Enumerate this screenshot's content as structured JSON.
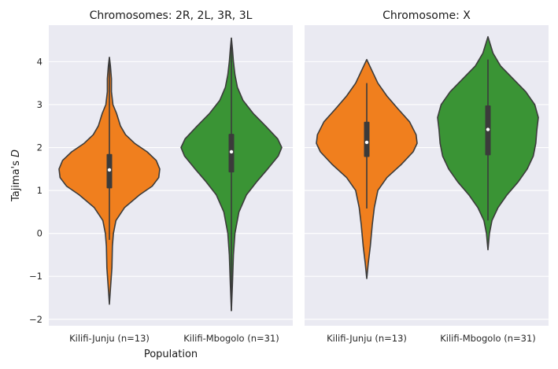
{
  "chart_data": {
    "type": "violin",
    "ylabel_prefix": "Tajima's ",
    "ylabel_italic": "D",
    "xlabel": "Population",
    "ylim": [
      -2.15,
      4.85
    ],
    "yticks": [
      {
        "value": -2,
        "label": "−2"
      },
      {
        "value": -1,
        "label": "−1"
      },
      {
        "value": 0,
        "label": "0"
      },
      {
        "value": 1,
        "label": "1"
      },
      {
        "value": 2,
        "label": "2"
      },
      {
        "value": 3,
        "label": "3"
      },
      {
        "value": 4,
        "label": "4"
      }
    ],
    "grid": true,
    "colors": {
      "Kilifi-Junju (n=13)": "#f07f1e",
      "Kilifi-Mbogolo (n=31)": "#3a9435",
      "background": "#eaeaf2",
      "line": "#3b3b3b"
    },
    "panels": [
      {
        "title": "Chromosomes: 2R, 2L, 3R, 3L",
        "categories": [
          "Kilifi-Junju (n=13)",
          "Kilifi-Mbogolo (n=31)"
        ],
        "violins": [
          {
            "category": "Kilifi-Junju (n=13)",
            "min": -1.65,
            "q1": 1.05,
            "median": 1.48,
            "q3": 1.85,
            "max": 4.1,
            "whisker_low": -0.15,
            "whisker_high": 4.1,
            "profile": [
              [
                -1.65,
                0.0
              ],
              [
                -1.3,
                0.02
              ],
              [
                -0.8,
                0.05
              ],
              [
                -0.3,
                0.06
              ],
              [
                0.0,
                0.08
              ],
              [
                0.3,
                0.13
              ],
              [
                0.6,
                0.3
              ],
              [
                0.9,
                0.6
              ],
              [
                1.1,
                0.85
              ],
              [
                1.3,
                0.98
              ],
              [
                1.5,
                1.0
              ],
              [
                1.7,
                0.93
              ],
              [
                1.9,
                0.75
              ],
              [
                2.1,
                0.5
              ],
              [
                2.3,
                0.32
              ],
              [
                2.5,
                0.22
              ],
              [
                2.8,
                0.14
              ],
              [
                3.0,
                0.07
              ],
              [
                3.3,
                0.04
              ],
              [
                3.6,
                0.04
              ],
              [
                3.9,
                0.02
              ],
              [
                4.1,
                0.0
              ]
            ]
          },
          {
            "category": "Kilifi-Mbogolo (n=31)",
            "min": -1.8,
            "q1": 1.42,
            "median": 1.9,
            "q3": 2.32,
            "max": 4.55,
            "whisker_low": -1.8,
            "whisker_high": 4.55,
            "profile": [
              [
                -1.8,
                0.0
              ],
              [
                -1.2,
                0.02
              ],
              [
                -0.5,
                0.04
              ],
              [
                0.0,
                0.07
              ],
              [
                0.5,
                0.15
              ],
              [
                0.9,
                0.3
              ],
              [
                1.2,
                0.5
              ],
              [
                1.5,
                0.72
              ],
              [
                1.8,
                0.93
              ],
              [
                2.0,
                1.0
              ],
              [
                2.2,
                0.92
              ],
              [
                2.5,
                0.68
              ],
              [
                2.8,
                0.43
              ],
              [
                3.1,
                0.23
              ],
              [
                3.4,
                0.12
              ],
              [
                3.7,
                0.07
              ],
              [
                4.0,
                0.04
              ],
              [
                4.3,
                0.02
              ],
              [
                4.55,
                0.0
              ]
            ]
          }
        ]
      },
      {
        "title": "Chromosome: X",
        "categories": [
          "Kilifi-Junju (n=13)",
          "Kilifi-Mbogolo (n=31)"
        ],
        "violins": [
          {
            "category": "Kilifi-Junju (n=13)",
            "min": -1.05,
            "q1": 1.78,
            "median": 2.12,
            "q3": 2.6,
            "max": 4.05,
            "whisker_low": 0.58,
            "whisker_high": 3.5,
            "profile": [
              [
                -1.05,
                0.0
              ],
              [
                -0.7,
                0.03
              ],
              [
                -0.3,
                0.07
              ],
              [
                0.2,
                0.11
              ],
              [
                0.6,
                0.15
              ],
              [
                1.0,
                0.22
              ],
              [
                1.3,
                0.4
              ],
              [
                1.6,
                0.68
              ],
              [
                1.9,
                0.92
              ],
              [
                2.1,
                1.0
              ],
              [
                2.3,
                0.98
              ],
              [
                2.6,
                0.85
              ],
              [
                2.9,
                0.62
              ],
              [
                3.2,
                0.4
              ],
              [
                3.5,
                0.22
              ],
              [
                3.8,
                0.1
              ],
              [
                4.05,
                0.0
              ]
            ]
          },
          {
            "category": "Kilifi-Mbogolo (n=31)",
            "min": -0.38,
            "q1": 1.82,
            "median": 2.42,
            "q3": 2.98,
            "max": 4.58,
            "whisker_low": 0.3,
            "whisker_high": 4.05,
            "profile": [
              [
                -0.38,
                0.0
              ],
              [
                0.0,
                0.03
              ],
              [
                0.3,
                0.08
              ],
              [
                0.6,
                0.2
              ],
              [
                0.9,
                0.38
              ],
              [
                1.2,
                0.6
              ],
              [
                1.5,
                0.78
              ],
              [
                1.8,
                0.9
              ],
              [
                2.1,
                0.95
              ],
              [
                2.4,
                0.97
              ],
              [
                2.7,
                1.0
              ],
              [
                3.0,
                0.93
              ],
              [
                3.3,
                0.75
              ],
              [
                3.6,
                0.5
              ],
              [
                3.9,
                0.25
              ],
              [
                4.2,
                0.1
              ],
              [
                4.58,
                0.0
              ]
            ]
          }
        ]
      }
    ]
  }
}
